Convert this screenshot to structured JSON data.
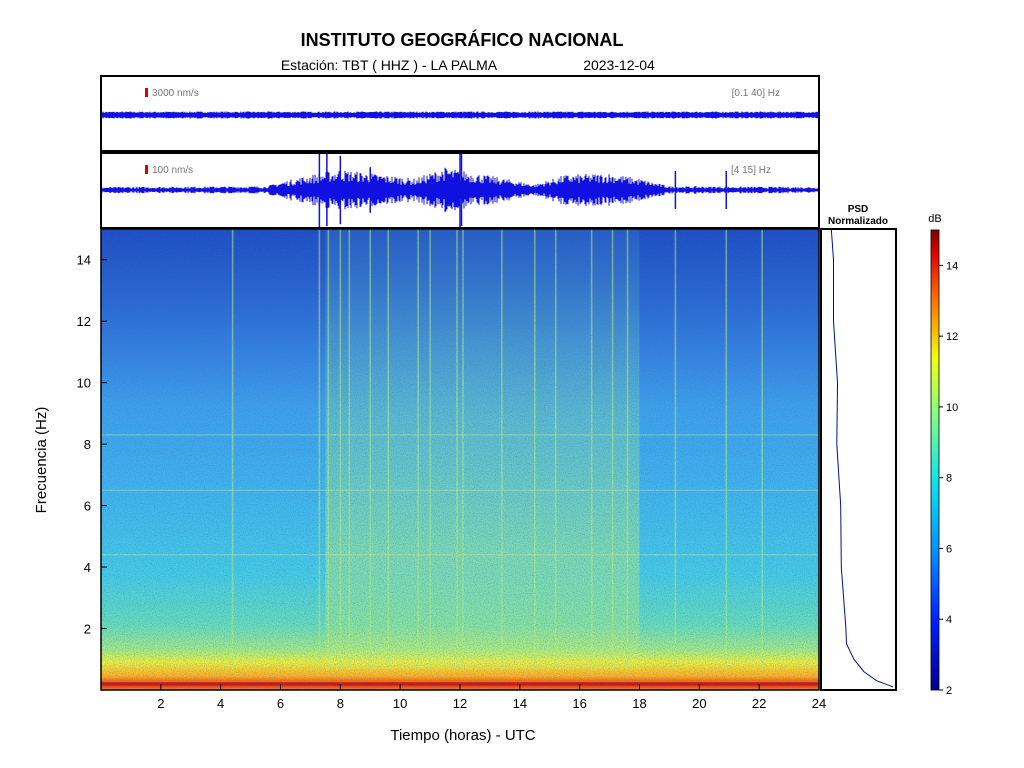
{
  "header": {
    "title": "INSTITUTO GEOGRÁFICO NACIONAL",
    "station_label": "Estación:  TBT ( HHZ ) - LA PALMA",
    "date": "2023-12-04"
  },
  "chart_data": [
    {
      "type": "line",
      "panel": "seismogram-broadband",
      "scale_label": "3000 nm/s",
      "band_label": "[0.1 40] Hz",
      "xlim": [
        0,
        24
      ]
    },
    {
      "type": "line",
      "panel": "seismogram-filtered",
      "scale_label": "100 nm/s",
      "band_label": "[4 15] Hz",
      "xlim": [
        0,
        24
      ],
      "bursts": [
        {
          "x": 7.3,
          "level": 1.0
        },
        {
          "x": 7.55,
          "level": 0.95
        },
        {
          "x": 8.0,
          "level": 0.9
        },
        {
          "x": 9.0,
          "level": 0.6
        },
        {
          "x": 12.0,
          "level": 1.0
        },
        {
          "x": 12.05,
          "level": 0.95
        },
        {
          "x": 19.2,
          "level": 0.5
        },
        {
          "x": 20.9,
          "level": 0.5
        }
      ],
      "envelope": [
        {
          "x": 0,
          "a": 0.08
        },
        {
          "x": 5.5,
          "a": 0.1
        },
        {
          "x": 6.2,
          "a": 0.25
        },
        {
          "x": 7,
          "a": 0.4
        },
        {
          "x": 8,
          "a": 0.55
        },
        {
          "x": 9.5,
          "a": 0.4
        },
        {
          "x": 10.5,
          "a": 0.3
        },
        {
          "x": 11.5,
          "a": 0.6
        },
        {
          "x": 12.5,
          "a": 0.45
        },
        {
          "x": 13.5,
          "a": 0.3
        },
        {
          "x": 14.5,
          "a": 0.15
        },
        {
          "x": 15.5,
          "a": 0.4
        },
        {
          "x": 17,
          "a": 0.45
        },
        {
          "x": 18,
          "a": 0.3
        },
        {
          "x": 19,
          "a": 0.1
        },
        {
          "x": 24,
          "a": 0.08
        }
      ]
    },
    {
      "type": "heatmap",
      "panel": "spectrogram",
      "xlabel": "Tiempo (horas) - UTC",
      "ylabel": "Frecuencia  (Hz)",
      "xlim": [
        0,
        24
      ],
      "ylim": [
        0,
        15
      ],
      "xticks": [
        2,
        4,
        6,
        8,
        10,
        12,
        14,
        16,
        18,
        20,
        22,
        24
      ],
      "yticks": [
        2,
        4,
        6,
        8,
        10,
        12,
        14
      ],
      "active_period": [
        7.5,
        18
      ],
      "noise_lines_hz": [
        0.2,
        4.4,
        6.5,
        8.3
      ]
    },
    {
      "type": "line",
      "panel": "psd",
      "title_line1": "PSD",
      "title_line2": "Normalizado",
      "points": [
        {
          "f": 15,
          "p": 0.05
        },
        {
          "f": 14,
          "p": 0.07
        },
        {
          "f": 12,
          "p": 0.1
        },
        {
          "f": 10,
          "p": 0.13
        },
        {
          "f": 8,
          "p": 0.15
        },
        {
          "f": 6,
          "p": 0.18
        },
        {
          "f": 4,
          "p": 0.22
        },
        {
          "f": 2,
          "p": 0.26
        },
        {
          "f": 1.5,
          "p": 0.3
        },
        {
          "f": 1,
          "p": 0.4
        },
        {
          "f": 0.6,
          "p": 0.55
        },
        {
          "f": 0.3,
          "p": 0.75
        },
        {
          "f": 0.1,
          "p": 1.0
        }
      ]
    },
    {
      "type": "colorbar",
      "panel": "colorbar",
      "label": "dB",
      "range": [
        2,
        15
      ],
      "ticks": [
        2,
        4,
        6,
        8,
        10,
        12,
        14
      ]
    }
  ]
}
